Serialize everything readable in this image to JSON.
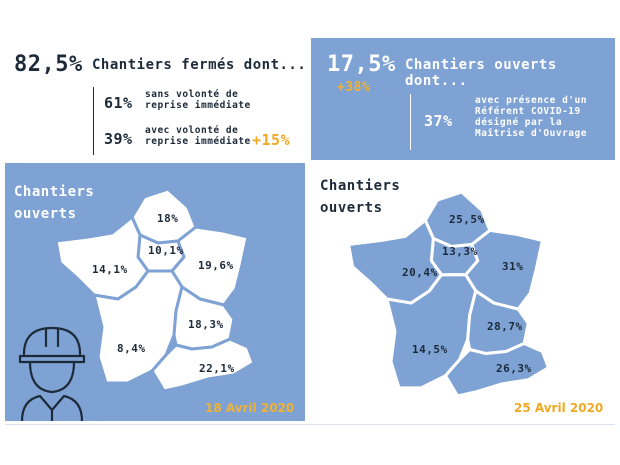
{
  "top_left": {
    "closed_pct": "82,5%",
    "closed_title": "Chantiers fermés dont...",
    "row1_pct": "61%",
    "row1_text_l1": "sans volonté de",
    "row1_text_l2": "reprise immédiate",
    "row2_pct": "39%",
    "row2_text_l1": "avec volonté de",
    "row2_text_l2": "reprise immédiate",
    "row2_change": "+15%"
  },
  "top_right": {
    "open_pct": "17,5%",
    "open_change": "+38%",
    "open_title": "Chantiers ouverts dont...",
    "row_pct": "37%",
    "row_text_l1": "avec présence d'un",
    "row_text_l2": "Référent COVID-19",
    "row_text_l3": "désigné par la",
    "row_text_l4": "Maîtrise d'Ouvrage"
  },
  "map_left": {
    "title_l1": "Chantiers",
    "title_l2": "ouverts",
    "date": "18 Avril 2020",
    "regions": {
      "north": "18%",
      "paris": "10,1%",
      "east": "19,6%",
      "west": "14,1%",
      "southwest": "8,4%",
      "southeast": "18,3%",
      "mediterranean": "22,1%"
    }
  },
  "map_right": {
    "title_l1": "Chantiers",
    "title_l2": "ouverts",
    "date": "25 Avril 2020",
    "regions": {
      "north": "25,5%",
      "paris": "13,3%",
      "east": "31%",
      "west": "20,4%",
      "southwest": "14,5%",
      "southeast": "28,7%",
      "mediterranean": "26,3%"
    }
  },
  "colors": {
    "blue": "#7ea2d3",
    "orange": "#f1a924",
    "navy": "#1d2a3a",
    "white": "#ffffff"
  },
  "icons": [
    "worker-helmet-icon"
  ]
}
